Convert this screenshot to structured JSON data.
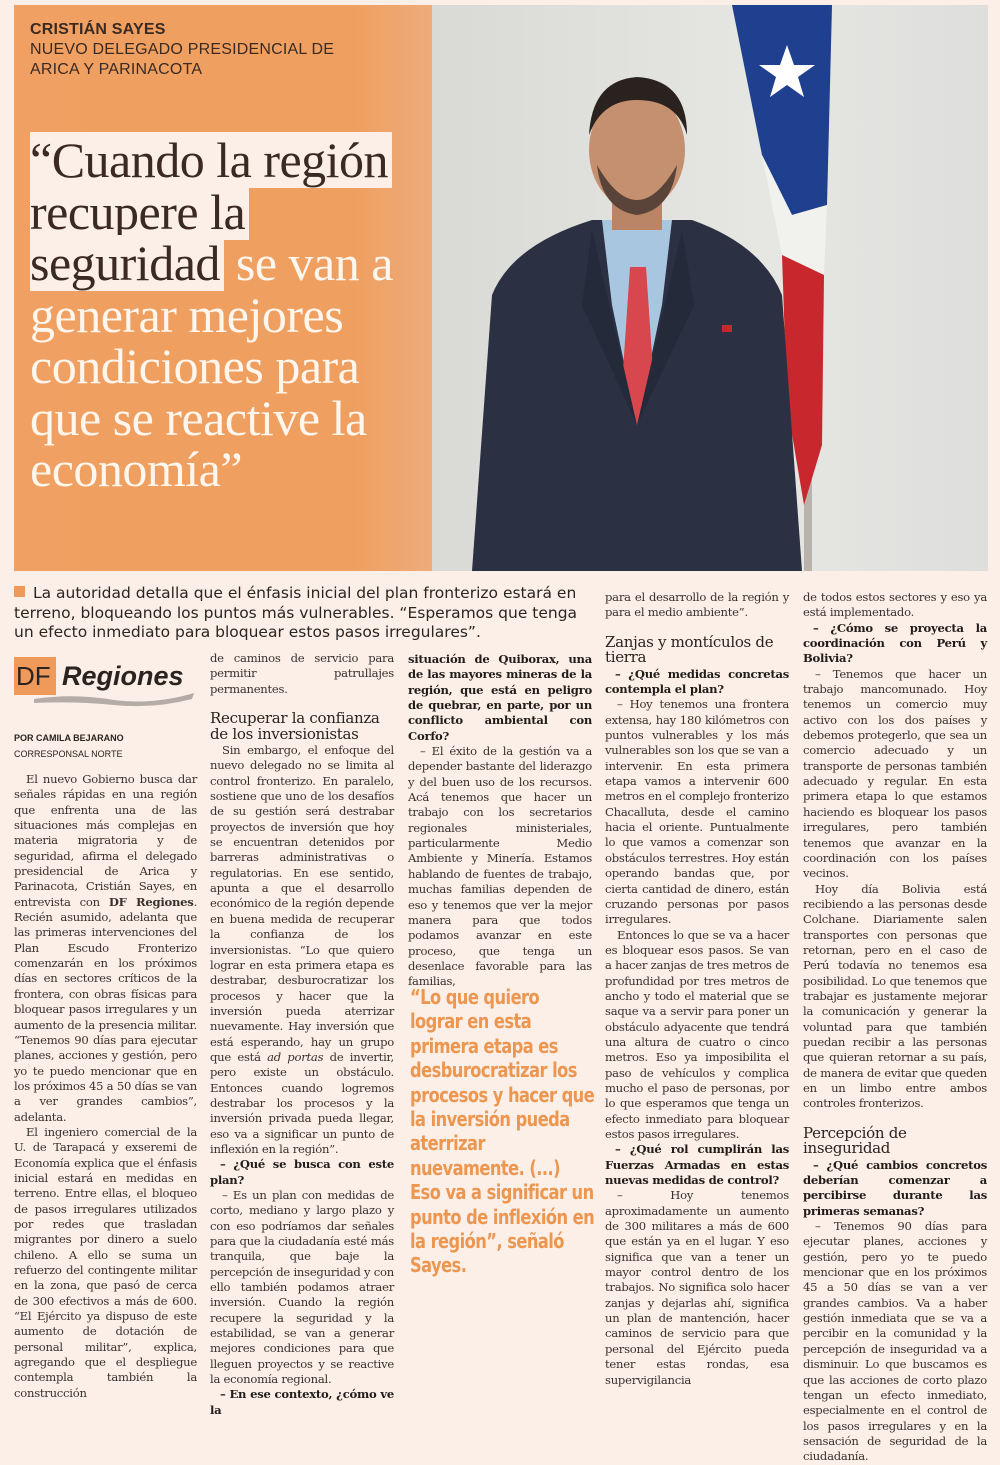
{
  "hero": {
    "name": "CRISTIÁN SAYES",
    "role_line1": "NUEVO DELEGADO PRESIDENCIAL DE",
    "role_line2": "ARICA Y PARINACOTA",
    "headline_highlight": "“Cuando la región recupere la seguridad",
    "headline_rest": " se van a generar mejores condiciones para que se reactive la economía”",
    "accent_color": "#ef9f5f"
  },
  "summary": "La autoridad detalla que el énfasis inicial del plan fronterizo estará en terreno, bloqueando los puntos más vulnerables. “Esperamos que tenga un efecto inmediato para bloquear estos pasos irregulares”.",
  "section": {
    "logo_df": "DF",
    "logo_name": "Regiones"
  },
  "byline": {
    "author": "POR CAMILA BEJARANO",
    "title": "CORRESPONSAL NORTE"
  },
  "pull_quote": "“Lo que quiero lograr en esta primera etapa es desburocratizar los procesos y hacer que la inversión pueda aterrizar nuevamente. (...) Eso va a significar un punto de inflexión en la región”, señaló Sayes.",
  "columns": [
    [
      {
        "type": "p",
        "text": "El nuevo Gobierno busca dar señales rápidas en una región que enfrenta una de las situaciones más complejas en materia migratoria y de seguridad, afirma el delegado presidencial de Arica y Parinacota, Cristián Sayes, en entrevista con ",
        "bold": "DF Regiones",
        "after": ". Recién asumido, adelanta que las primeras intervenciones del Plan Escudo Fronterizo comenzarán en los próximos días en sectores críticos de la frontera, con obras físicas para bloquear pasos irregulares y un aumento de la presencia militar. “Tenemos 90 días para ejecutar planes, acciones y gestión, pero yo te puedo mencionar que en los próximos 45 a 50 días se van a ver grandes cambios”, adelanta."
      },
      {
        "type": "p",
        "text": "El ingeniero comercial de la U. de Tarapacá y exseremi de Economía explica que el énfasis inicial estará en medidas en terreno. Entre ellas, el bloqueo de pasos irregulares utilizados por redes que trasladan migrantes por dinero a suelo chileno. A ello se suma un refuerzo del contingente militar en la zona, que pasó de cerca de 300 efectivos a más de 600. “El Ejército ya dispuso de este aumento de dotación de personal militar”, explica, agregando que el despliegue contempla también la construcción"
      }
    ],
    [
      {
        "type": "p",
        "cls": "noind",
        "text": "de caminos de servicio para permitir patrullajes permanentes."
      },
      {
        "type": "h",
        "text": "Recuperar la confianza de los inversionistas"
      },
      {
        "type": "p",
        "text": "Sin embargo, el enfoque del nuevo delegado no se limita al control fronterizo. En paralelo, sostiene que uno de los desafíos de su gestión será destrabar proyectos de inversión que hoy se encuentran detenidos por barreras administrativas o regulatorias. En ese sentido, apunta a que el desarrollo económico de la región depende en buena medida de recuperar la confianza de los inversionistas. “Lo que quiero lograr en esta primera etapa es destrabar, desburocratizar los procesos y hacer que la inversión pueda aterrizar nuevamente. Hay inversión que está esperando, hay un grupo que está ",
        "italic": "ad portas",
        "after": " de invertir, pero existe un obstáculo. Entonces cuando logremos destrabar los procesos y la inversión privada pueda llegar, eso va a significar un punto de inflexión en la región”."
      },
      {
        "type": "q",
        "text": "– ¿Qué se busca con este plan?"
      },
      {
        "type": "p",
        "text": "– Es un plan con medidas de corto, mediano y largo plazo y con eso podríamos dar señales para que la ciudadanía esté más tranquila, que baje la percepción de inseguridad y con ello también podamos atraer inversión. Cuando la región recupere la seguridad y la estabilidad, se van a generar mejores condiciones para que lleguen proyectos y se reactive la economía regional."
      },
      {
        "type": "q",
        "text": "– En ese contexto, ¿cómo ve la"
      }
    ],
    [
      {
        "type": "q",
        "cls": "noind",
        "text": "situación de Quiborax, una de las mayores mineras de la región, que está en peligro de quebrar, en parte, por un conflicto ambiental con Corfo?"
      },
      {
        "type": "p",
        "text": "– El éxito de la gestión va a depender bastante del liderazgo y del buen uso de los recursos. Acá tenemos que hacer un trabajo con los secretarios regionales ministeriales, particularmente Medio Ambiente y Minería. Estamos hablando de fuentes de trabajo, muchas familias dependen de eso y tenemos que ver la mejor manera para que todos podamos avanzar en este proceso, que tenga un desenlace favorable para las familias,"
      }
    ],
    [
      {
        "type": "p",
        "cls": "noind",
        "text": "para el desarrollo de la región y para el medio ambiente”."
      },
      {
        "type": "h",
        "text": "Zanjas y montículos de tierra"
      },
      {
        "type": "q",
        "text": "– ¿Qué medidas concretas contempla el plan?"
      },
      {
        "type": "p",
        "text": "– Hoy tenemos una frontera extensa, hay 180 kilómetros con puntos vulnerables y los más vulnerables son los que se van a intervenir. En esta primera etapa vamos a intervenir 600 metros en el complejo fronterizo Chacalluta, desde el camino hacia el oriente. Puntualmente lo que vamos a comenzar son obstáculos terrestres. Hoy están operando bandas que, por cierta cantidad de dinero, están cruzando personas por pasos irregulares."
      },
      {
        "type": "p",
        "text": "Entonces lo que se va a hacer es bloquear esos pasos. Se van a hacer zanjas de tres metros de profundidad por tres metros de ancho y todo el material que se saque va a servir para poner un obstáculo adyacente que tendrá una altura de cuatro o cinco metros. Eso ya imposibilita el paso de vehículos y complica mucho el paso de personas, por lo que esperamos que tenga un efecto inmediato para bloquear estos pasos irregulares."
      },
      {
        "type": "q",
        "text": "– ¿Qué rol cumplirán las Fuerzas Armadas en estas nuevas medidas de control?"
      },
      {
        "type": "p",
        "text": "– Hoy tenemos aproximadamente un aumento de 300 militares a más de 600 que están ya en el lugar. Y eso significa que van a tener un mayor control dentro de los trabajos. No significa solo hacer zanjas y dejarlas ahí, significa un plan de mantención, hacer caminos de servicio para que personal del Ejército pueda tener estas rondas, esa supervigilancia"
      }
    ],
    [
      {
        "type": "p",
        "cls": "noind",
        "text": "de todos estos sectores y eso ya está implementado."
      },
      {
        "type": "q",
        "text": "– ¿Cómo se proyecta la coordinación con Perú y Bolivia?"
      },
      {
        "type": "p",
        "text": "– Tenemos que hacer un trabajo mancomunado. Hoy tenemos un comercio muy activo con los dos países y debemos protegerlo, que sea un comercio adecuado y un transporte de personas también adecuado y regular. En esta primera etapa lo que estamos haciendo es bloquear los pasos irregulares, pero también tenemos que avanzar en la coordinación con los países vecinos."
      },
      {
        "type": "p",
        "text": "Hoy día Bolivia está recibiendo a las personas desde Colchane. Diariamente salen transportes con personas que retornan, pero en el caso de Perú todavía no tenemos esa posibilidad. Lo que tenemos que trabajar es justamente mejorar la comunicación y generar la voluntad para que también puedan recibir a las personas que quieran retornar a su país, de manera de evitar que queden en un limbo entre ambos controles fronterizos."
      },
      {
        "type": "h",
        "text": "Percepción de inseguridad"
      },
      {
        "type": "q",
        "text": "– ¿Qué cambios concretos deberían comenzar a percibirse durante las primeras semanas?"
      },
      {
        "type": "p",
        "text": "– Tenemos 90 días para ejecutar planes, acciones y gestión, pero yo te puedo mencionar que en los próximos 45 a 50 días se van a ver grandes cambios. Va a haber gestión inmediata que se va a percibir en la comunidad y la percepción de inseguridad va a disminuir. Lo que buscamos es que las acciones de corto plazo tengan un efecto inmediato, especialmente en el control de los pasos irregulares y en la sensación de seguridad de la ciudadanía."
      }
    ]
  ]
}
